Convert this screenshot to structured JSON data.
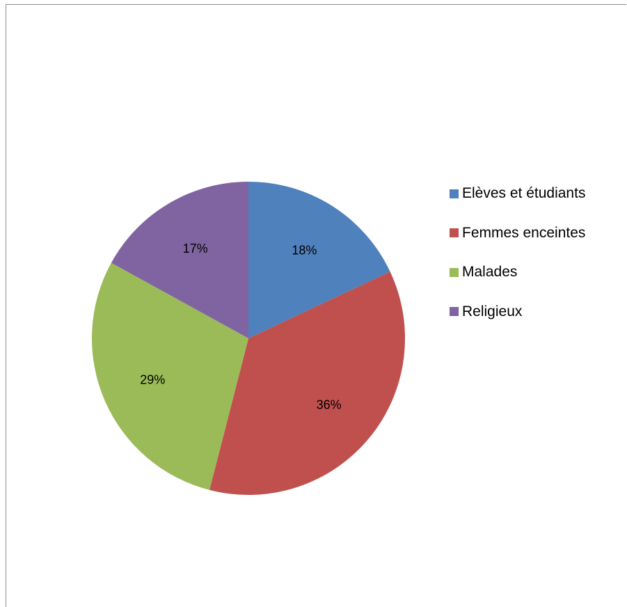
{
  "chart_data": {
    "type": "pie",
    "title": "",
    "categories": [
      "Elèves et étudiants",
      "Femmes enceintes",
      "Malades",
      "Religieux"
    ],
    "values": [
      18,
      36,
      29,
      17
    ],
    "labels": [
      "18%",
      "36%",
      "29%",
      "17%"
    ],
    "colors": [
      "#4f81bd",
      "#c0504d",
      "#9bbb59",
      "#8064a2"
    ],
    "start_angle_deg": 0,
    "direction": "clockwise",
    "legend": "right"
  }
}
